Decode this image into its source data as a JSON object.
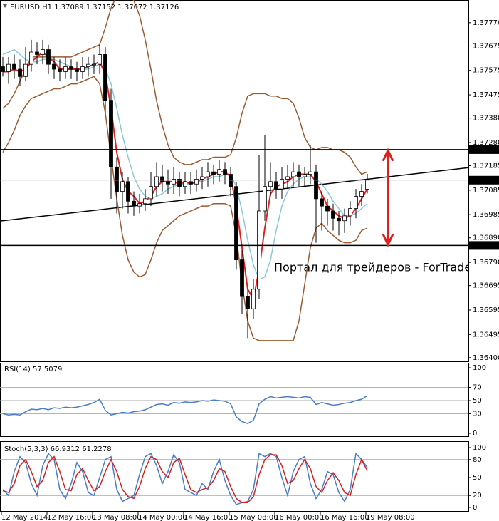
{
  "chart_data": [
    {
      "type": "candlestick",
      "title": "EURUSD,H1",
      "categories": [
        "12 May 2014",
        null,
        null,
        null,
        null,
        null,
        null,
        null,
        "12 May 16:00",
        null,
        null,
        null,
        null,
        null,
        null,
        null,
        "13 May 08:00",
        null,
        null,
        null,
        null,
        null,
        null,
        null,
        "14 May 00:00",
        null,
        null,
        null,
        null,
        null,
        null,
        null,
        "14 May 16:00",
        null,
        null,
        null,
        null,
        null,
        null,
        null,
        "15 May 08:00",
        null,
        null,
        null,
        null,
        null,
        null,
        null,
        "16 May 00:00",
        null,
        null,
        null,
        null,
        null,
        null,
        null,
        "16 May 16:00",
        null,
        null,
        null,
        null,
        null,
        null,
        null,
        "19 May 08:00"
      ],
      "open": [
        1.3759,
        1.3757,
        1.376,
        1.3758,
        1.3755,
        1.376,
        1.3765,
        1.3764,
        1.3766,
        1.376,
        1.3758,
        1.3757,
        1.3759,
        1.3758,
        1.3757,
        1.3759,
        1.376,
        1.376,
        1.3764,
        1.3745,
        1.3718,
        1.3708,
        1.3712,
        1.3704,
        1.3702,
        1.3703,
        1.3705,
        1.371,
        1.3714,
        1.3712,
        1.3711,
        1.3713,
        1.371,
        1.3712,
        1.3711,
        1.3713,
        1.3714,
        1.3716,
        1.3715,
        1.3717,
        1.3715,
        1.371,
        1.368,
        1.3665,
        1.366,
        1.3668,
        1.37,
        1.371,
        1.3712,
        1.3709,
        1.3713,
        1.3714,
        1.3716,
        1.3714,
        1.3715,
        1.3716,
        1.3705,
        1.3702,
        1.37,
        1.3697,
        1.3696,
        1.3698,
        1.3701,
        1.3706,
        1.37089
      ],
      "high": [
        1.3763,
        1.3763,
        1.3764,
        1.3762,
        1.3767,
        1.377,
        1.3769,
        1.377,
        1.3768,
        1.3763,
        1.3762,
        1.3763,
        1.3762,
        1.3761,
        1.3763,
        1.3763,
        1.3764,
        1.3768,
        1.3767,
        1.375,
        1.3722,
        1.3716,
        1.3714,
        1.3708,
        1.3707,
        1.3709,
        1.3716,
        1.372,
        1.3719,
        1.3717,
        1.3718,
        1.3716,
        1.3716,
        1.3716,
        1.3717,
        1.3718,
        1.372,
        1.3719,
        1.3721,
        1.372,
        1.3718,
        1.3712,
        1.3684,
        1.3668,
        1.3672,
        1.3723,
        1.3731,
        1.372,
        1.3716,
        1.3718,
        1.3719,
        1.372,
        1.3719,
        1.3718,
        1.3727,
        1.3719,
        1.3708,
        1.3705,
        1.3703,
        1.37,
        1.3701,
        1.3704,
        1.3709,
        1.3711,
        1.37152
      ],
      "low": [
        1.3755,
        1.3752,
        1.3754,
        1.3751,
        1.3753,
        1.3757,
        1.376,
        1.376,
        1.3756,
        1.3754,
        1.3753,
        1.3754,
        1.3754,
        1.3753,
        1.3754,
        1.3755,
        1.3756,
        1.3756,
        1.374,
        1.3705,
        1.3699,
        1.3701,
        1.3699,
        1.3698,
        1.3699,
        1.37,
        1.3702,
        1.3706,
        1.3708,
        1.3707,
        1.3707,
        1.3706,
        1.3707,
        1.3707,
        1.3708,
        1.3709,
        1.371,
        1.3711,
        1.3712,
        1.3711,
        1.3706,
        1.3676,
        1.3658,
        1.3648,
        1.3656,
        1.3664,
        1.3696,
        1.3706,
        1.3705,
        1.3705,
        1.3709,
        1.371,
        1.371,
        1.371,
        1.3711,
        1.3687,
        1.3692,
        1.3694,
        1.3692,
        1.369,
        1.3691,
        1.3694,
        1.3697,
        1.3702,
        1.37072
      ],
      "close": [
        1.3757,
        1.376,
        1.3758,
        1.3755,
        1.376,
        1.3765,
        1.3764,
        1.3766,
        1.376,
        1.3758,
        1.3757,
        1.3759,
        1.3758,
        1.3757,
        1.3759,
        1.376,
        1.376,
        1.3764,
        1.3745,
        1.3718,
        1.3708,
        1.3712,
        1.3704,
        1.3702,
        1.3703,
        1.3705,
        1.371,
        1.3714,
        1.3712,
        1.3711,
        1.3713,
        1.371,
        1.3712,
        1.3711,
        1.3713,
        1.3714,
        1.3716,
        1.3715,
        1.3717,
        1.3715,
        1.371,
        1.368,
        1.3665,
        1.366,
        1.3668,
        1.37,
        1.371,
        1.3712,
        1.3709,
        1.3713,
        1.3714,
        1.3716,
        1.3714,
        1.3715,
        1.3716,
        1.3705,
        1.3702,
        1.37,
        1.3697,
        1.3696,
        1.3698,
        1.3701,
        1.3706,
        1.3708,
        1.37126
      ],
      "bull_color": "#ffffff",
      "bear_color": "#000000",
      "overlays": [
        {
          "color": "#9a5b33",
          "values": [
            1.3742,
            1.3744,
            1.3748,
            1.3753,
            1.3758,
            1.3763,
            1.3763,
            1.3763,
            1.3763,
            1.3763,
            1.3763,
            1.3763,
            1.3763,
            1.3764,
            1.3765,
            1.3766,
            1.3767,
            1.3768,
            1.3775,
            1.3783,
            1.3788,
            1.379,
            1.3789,
            1.3786,
            1.378,
            1.377,
            1.3758,
            1.3745,
            1.3735,
            1.3727,
            1.3722,
            1.372,
            1.3719,
            1.3719,
            1.372,
            1.3721,
            1.3721,
            1.3722,
            1.3722,
            1.3722,
            1.3723,
            1.373,
            1.374,
            1.3747,
            1.3748,
            1.3748,
            1.3748,
            1.3747,
            1.3747,
            1.3746,
            1.3746,
            1.3744,
            1.3738,
            1.373,
            1.3726,
            1.3725,
            1.3726,
            1.3726,
            1.3725,
            1.3725,
            1.3724,
            1.3722,
            1.3718,
            1.3715,
            1.3716
          ]
        },
        {
          "color": "#9a5b33",
          "values": [
            1.3724,
            1.3728,
            1.3733,
            1.3739,
            1.3743,
            1.3746,
            1.3747,
            1.3748,
            1.3749,
            1.375,
            1.375,
            1.3751,
            1.3752,
            1.3752,
            1.3753,
            1.3754,
            1.3755,
            1.3752,
            1.374,
            1.3722,
            1.3705,
            1.369,
            1.368,
            1.3675,
            1.3673,
            1.3674,
            1.368,
            1.3687,
            1.3692,
            1.3694,
            1.3696,
            1.3698,
            1.3699,
            1.37,
            1.3701,
            1.3702,
            1.3702,
            1.3703,
            1.3703,
            1.3703,
            1.3702,
            1.369,
            1.367,
            1.3655,
            1.3648,
            1.3647,
            1.3647,
            1.3647,
            1.3647,
            1.3647,
            1.3647,
            1.3647,
            1.3655,
            1.367,
            1.3685,
            1.3693,
            1.3695,
            1.3692,
            1.369,
            1.3688,
            1.3687,
            1.3687,
            1.3688,
            1.3692,
            1.3693
          ]
        },
        {
          "color": "#8cc8dc",
          "values": [
            1.3764,
            1.3765,
            1.3766,
            1.3764,
            1.3762,
            1.3761,
            1.3761,
            1.3762,
            1.3762,
            1.3762,
            1.3761,
            1.376,
            1.3759,
            1.3758,
            1.3758,
            1.3758,
            1.3759,
            1.376,
            1.3758,
            1.3752,
            1.3742,
            1.3731,
            1.3722,
            1.3714,
            1.3709,
            1.3706,
            1.3705,
            1.3706,
            1.3707,
            1.3709,
            1.371,
            1.3711,
            1.3711,
            1.3711,
            1.3712,
            1.3712,
            1.3713,
            1.3714,
            1.3714,
            1.3715,
            1.3715,
            1.371,
            1.37,
            1.3688,
            1.3678,
            1.3672,
            1.3673,
            1.368,
            1.3692,
            1.3702,
            1.3708,
            1.3711,
            1.3713,
            1.3714,
            1.3714,
            1.3713,
            1.3711,
            1.3708,
            1.3704,
            1.3701,
            1.3698,
            1.3698,
            1.3699,
            1.3701,
            1.3703
          ]
        },
        {
          "color": "#e0201c",
          "values": [
            1.3757,
            1.3757,
            1.3758,
            1.3757,
            1.3758,
            1.3761,
            1.3763,
            1.3765,
            1.3763,
            1.3761,
            1.3758,
            1.3758,
            1.3758,
            1.3758,
            1.3758,
            1.3759,
            1.376,
            1.3761,
            1.3756,
            1.3742,
            1.3724,
            1.3713,
            1.3708,
            1.3706,
            1.3703,
            1.3704,
            1.3706,
            1.371,
            1.3712,
            1.3712,
            1.3712,
            1.3711,
            1.3712,
            1.3711,
            1.3712,
            1.3713,
            1.3714,
            1.3715,
            1.3716,
            1.3716,
            1.3714,
            1.3702,
            1.3685,
            1.3668,
            1.3664,
            1.3676,
            1.3693,
            1.3707,
            1.371,
            1.3711,
            1.3712,
            1.3714,
            1.3715,
            1.3715,
            1.3715,
            1.3712,
            1.3707,
            1.3702,
            1.37,
            1.3698,
            1.3697,
            1.3698,
            1.3701,
            1.3705,
            1.3709
          ]
        }
      ],
      "trendline": [
        1.3696,
        1.3713
      ],
      "levels": [
        1.37251,
        1.36859
      ],
      "arrow_color": "#e0201c",
      "watermark": "Портал для трейдеров - ForTrader.ru",
      "ylim": [
        1.36385,
        1.37857
      ],
      "yticks": [
        {
          "value": 1.3777,
          "label": "1.37770"
        },
        1.37675,
        1.37575,
        1.37475,
        {
          "value": 1.3738,
          "label": "1.37380"
        },
        {
          "value": 1.3728,
          "label": "1.37280"
        },
        1.37185,
        1.37085,
        1.36985,
        {
          "value": 1.3689,
          "label": "1.36890"
        },
        {
          "value": 1.3679,
          "label": "1.36790"
        },
        1.36695,
        1.36595,
        1.36495,
        {
          "value": 1.364,
          "label": "1.36400"
        }
      ]
    },
    {
      "type": "line",
      "title": "RSI(14)",
      "series": [
        {
          "color": "#4a7cc7",
          "values": [
            30,
            28,
            29,
            28,
            33,
            37,
            36,
            38,
            36,
            39,
            38,
            40,
            39,
            40,
            42,
            44,
            47,
            52,
            35,
            28,
            30,
            32,
            31,
            33,
            34,
            36,
            40,
            44,
            45,
            43,
            47,
            46,
            48,
            47,
            48,
            50,
            49,
            51,
            50,
            49,
            45,
            25,
            18,
            15,
            20,
            45,
            52,
            56,
            54,
            55,
            56,
            55,
            54,
            56,
            55,
            44,
            47,
            45,
            43,
            44,
            46,
            47,
            50,
            52,
            57.5079
          ]
        }
      ],
      "levels": [
        30,
        50,
        70
      ],
      "ylim": [
        0,
        100
      ],
      "yticks": [
        0,
        30,
        50,
        70,
        100
      ]
    },
    {
      "type": "line",
      "title": "Stoch(5,3,3)",
      "series": [
        {
          "color": "#4a7cc7",
          "values": [
            30,
            20,
            60,
            85,
            75,
            40,
            20,
            70,
            90,
            80,
            30,
            15,
            40,
            75,
            60,
            25,
            20,
            50,
            80,
            85,
            30,
            10,
            15,
            20,
            55,
            85,
            90,
            70,
            40,
            60,
            88,
            75,
            30,
            25,
            20,
            40,
            30,
            60,
            80,
            45,
            20,
            5,
            8,
            10,
            30,
            90,
            85,
            90,
            85,
            50,
            20,
            60,
            80,
            85,
            40,
            15,
            30,
            60,
            55,
            25,
            10,
            30,
            90,
            80,
            66.9312
          ]
        },
        {
          "color": "#d42020",
          "values": [
            28,
            25,
            40,
            70,
            80,
            60,
            35,
            45,
            75,
            85,
            60,
            30,
            28,
            55,
            65,
            45,
            28,
            35,
            60,
            80,
            60,
            30,
            18,
            15,
            35,
            65,
            85,
            80,
            60,
            50,
            75,
            82,
            55,
            30,
            25,
            30,
            33,
            45,
            65,
            60,
            35,
            15,
            8,
            8,
            18,
            55,
            80,
            88,
            88,
            70,
            40,
            45,
            65,
            80,
            65,
            35,
            25,
            45,
            58,
            45,
            25,
            20,
            55,
            80,
            61.2278
          ]
        }
      ],
      "levels": [
        20,
        80
      ],
      "ylim": [
        0,
        100
      ],
      "yticks": [
        0,
        20,
        50,
        80,
        100
      ]
    }
  ]
}
